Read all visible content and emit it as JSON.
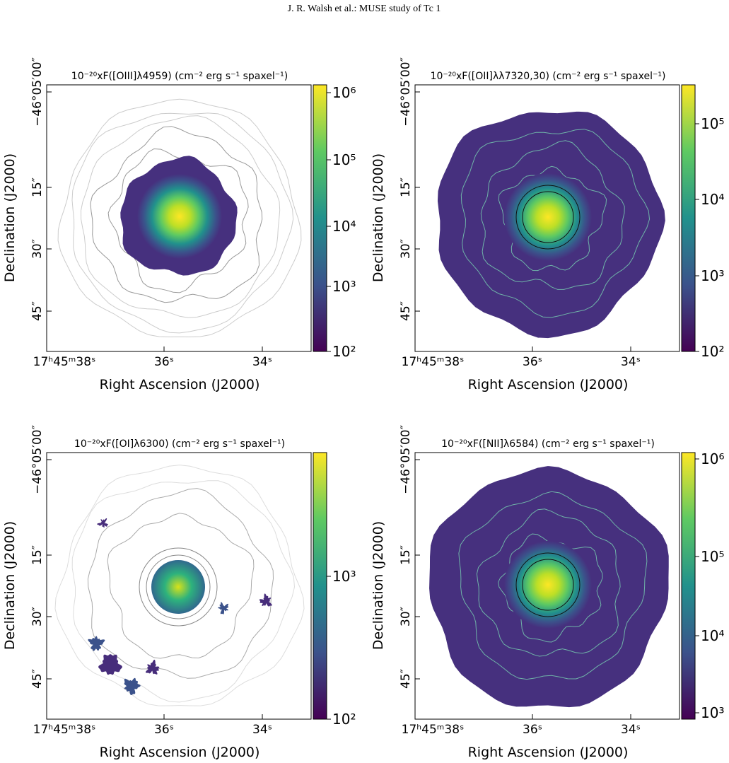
{
  "header": "J. R. Walsh et al.: MUSE study of Tc 1",
  "panels": [
    {
      "title": "10⁻²⁰xF([OIII]λ4959) (cm⁻² erg s⁻¹ spaxel⁻¹)",
      "x_label": "Right Ascension (J2000)",
      "y_label": "Declination (J2000)",
      "x_ticks": [
        "17ʰ45ᵐ38ˢ",
        "36ˢ",
        "34ˢ"
      ],
      "y_ticks": [
        "−46°05′00″",
        "15″",
        "30″",
        "45″"
      ],
      "colorbar_ticks": [
        "10⁶",
        "10⁵",
        "10⁴",
        "10³",
        "10²"
      ]
    },
    {
      "title": "10⁻²⁰xF([OII]λλ7320,30) (cm⁻² erg s⁻¹ spaxel⁻¹)",
      "x_label": "Right Ascension (J2000)",
      "y_label": "Declination (J2000)",
      "x_ticks": [
        "17ʰ45ᵐ38ˢ",
        "36ˢ",
        "34ˢ"
      ],
      "y_ticks": [
        "−46°05′00″",
        "15″",
        "30″",
        "45″"
      ],
      "colorbar_ticks": [
        "10⁵",
        "10⁴",
        "10³",
        "10²"
      ]
    },
    {
      "title": "10⁻²⁰xF([OI]λ6300) (cm⁻² erg s⁻¹ spaxel⁻¹)",
      "x_label": "Right Ascension (J2000)",
      "y_label": "Declination (J2000)",
      "x_ticks": [
        "17ʰ45ᵐ38ˢ",
        "36ˢ",
        "34ˢ"
      ],
      "y_ticks": [
        "−46°05′00″",
        "15″",
        "30″",
        "45″"
      ],
      "colorbar_ticks": [
        "10³",
        "10²"
      ]
    },
    {
      "title": "10⁻²⁰xF([NII]λ6584) (cm⁻² erg s⁻¹ spaxel⁻¹)",
      "x_label": "Right Ascension (J2000)",
      "y_label": "Declination (J2000)",
      "x_ticks": [
        "17ʰ45ᵐ38ˢ",
        "36ˢ",
        "34ˢ"
      ],
      "y_ticks": [
        "−46°05′00″",
        "15″",
        "30″",
        "45″"
      ],
      "colorbar_ticks": [
        "10⁶",
        "10⁵",
        "10⁴",
        "10³"
      ]
    }
  ]
}
